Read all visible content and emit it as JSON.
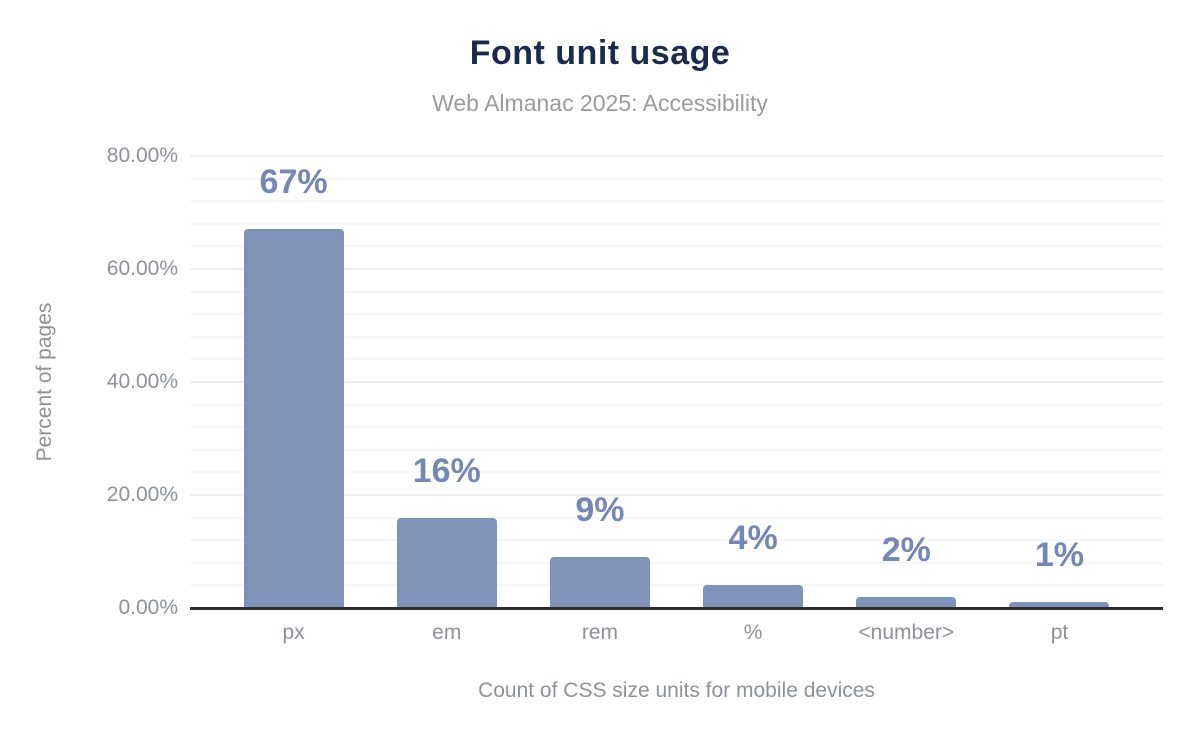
{
  "figure": {
    "title": "Font unit usage",
    "subtitle": "Web Almanac 2025: Accessibility"
  },
  "chart_data": {
    "type": "bar",
    "title": "Font unit usage",
    "subtitle": "Web Almanac 2025: Accessibility",
    "categories": [
      "px",
      "em",
      "rem",
      "%",
      "<number>",
      "pt"
    ],
    "values": [
      67,
      16,
      9,
      4,
      2,
      1
    ],
    "bar_labels": [
      "67%",
      "16%",
      "9%",
      "4%",
      "2%",
      "1%"
    ],
    "xlabel": "Count of CSS size units for mobile devices",
    "ylabel": "Percent of pages",
    "ylim": [
      0,
      80
    ],
    "ytick_values": [
      0,
      20,
      40,
      60,
      80
    ],
    "ytick_labels": [
      "0.00%",
      "20.00%",
      "40.00%",
      "60.00%",
      "80.00%"
    ],
    "minor_grid_step_pct": 4,
    "grid": "horizontal",
    "legend_position": "none"
  },
  "colors": {
    "background": "#ffffff",
    "title": "#1b2a4d",
    "subtitle": "#9b9b9b",
    "bar": "#7f93b8",
    "bar_label": "#7488b4",
    "axis_text": "#8d9199",
    "axis_line": "#2d2d2d",
    "grid_minor": "#f7f7f7",
    "grid_major": "#efefef"
  }
}
